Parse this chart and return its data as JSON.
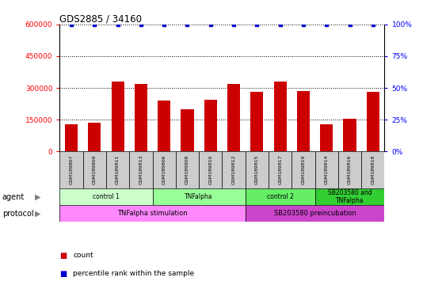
{
  "title": "GDS2885 / 34160",
  "samples": [
    "GSM189807",
    "GSM189809",
    "GSM189811",
    "GSM189813",
    "GSM189806",
    "GSM189808",
    "GSM189810",
    "GSM189812",
    "GSM189815",
    "GSM189817",
    "GSM189819",
    "GSM189814",
    "GSM189816",
    "GSM189818"
  ],
  "counts": [
    130000,
    135000,
    330000,
    320000,
    240000,
    200000,
    245000,
    320000,
    280000,
    330000,
    285000,
    130000,
    155000,
    280000
  ],
  "percentile_ranks": [
    100,
    100,
    100,
    100,
    100,
    100,
    100,
    100,
    100,
    100,
    100,
    100,
    100,
    100
  ],
  "ylim_left": [
    0,
    600000
  ],
  "ylim_right": [
    0,
    100
  ],
  "yticks_left": [
    0,
    150000,
    300000,
    450000,
    600000
  ],
  "yticks_right": [
    0,
    25,
    50,
    75,
    100
  ],
  "agent_groups": [
    {
      "label": "control 1",
      "start": 0,
      "end": 3,
      "color": "#ccffcc"
    },
    {
      "label": "TNFalpha",
      "start": 4,
      "end": 7,
      "color": "#99ff99"
    },
    {
      "label": "control 2",
      "start": 8,
      "end": 10,
      "color": "#66ee66"
    },
    {
      "label": "SB203580 and\nTNFalpha",
      "start": 11,
      "end": 13,
      "color": "#33cc33"
    }
  ],
  "protocol_groups": [
    {
      "label": "TNFalpha stimulation",
      "start": 0,
      "end": 7,
      "color": "#ff88ff"
    },
    {
      "label": "SB203580 preincubation",
      "start": 8,
      "end": 13,
      "color": "#cc44cc"
    }
  ],
  "bar_color": "#cc0000",
  "dot_color": "#0000cc",
  "sample_bg_color": "#cccccc",
  "legend_count_color": "#cc0000",
  "legend_pct_color": "#0000cc"
}
